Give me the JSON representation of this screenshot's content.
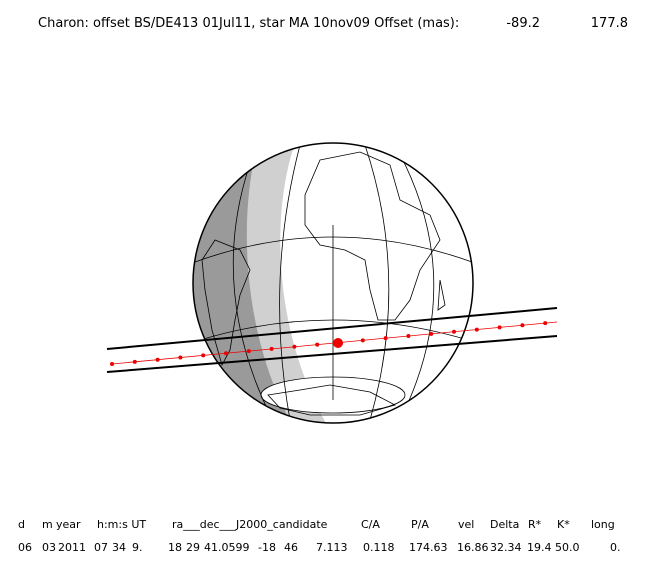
{
  "header": {
    "title": "Charon: offset BS/DE413 01Jul11, star MA 10nov09  Offset (mas):",
    "offset_ra": "-89.2",
    "offset_dec": "177.8"
  },
  "table": {
    "columns": [
      "d",
      "m",
      "year",
      "h:m:s UT",
      "ra___dec___J2000_candidate",
      "C/A",
      "P/A",
      "vel",
      "Delta",
      "R*",
      "K*",
      "long"
    ],
    "rows": [
      [
        "06",
        "03",
        "2011",
        "07",
        "34",
        "9.",
        "18",
        "29",
        "41.0599",
        "-18",
        "46",
        "7.113",
        "0.118",
        "174.63",
        "16.86",
        "32.34",
        "19.4",
        "50.0",
        "0."
      ]
    ]
  }
}
